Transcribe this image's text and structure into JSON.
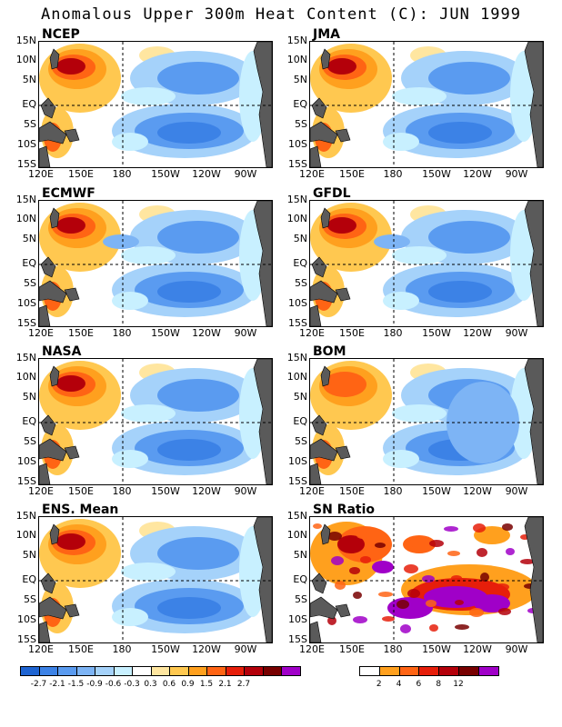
{
  "title": "Anomalous Upper 300m Heat Content (C): JUN 1999",
  "lat_labels": [
    "15N",
    "10N",
    "5N",
    "EQ",
    "5S",
    "10S",
    "15S"
  ],
  "lon_labels": [
    "120E",
    "150E",
    "180",
    "150W",
    "120W",
    "90W"
  ],
  "panels": [
    {
      "id": "ncep",
      "label": "NCEP"
    },
    {
      "id": "jma",
      "label": "JMA"
    },
    {
      "id": "ecmwf",
      "label": "ECMWF"
    },
    {
      "id": "gfdl",
      "label": "GFDL"
    },
    {
      "id": "nasa",
      "label": "NASA"
    },
    {
      "id": "bom",
      "label": "BOM"
    },
    {
      "id": "ens",
      "label": "ENS. Mean"
    },
    {
      "id": "sn",
      "label": "SN Ratio"
    }
  ],
  "colorbar_anomaly": {
    "colors": [
      "#1e64d2",
      "#3c82e6",
      "#5a9bf0",
      "#7db4f5",
      "#a5d2fa",
      "#c8f0ff",
      "#ffffff",
      "#ffe6a0",
      "#ffc850",
      "#ffa01e",
      "#ff6414",
      "#e61e0a",
      "#b4000a",
      "#780000",
      "#a000c8"
    ],
    "labels": [
      "-2.7",
      "-2.1",
      "-1.5",
      "-0.9",
      "-0.6",
      "-0.3",
      "0.3",
      "0.6",
      "0.9",
      "1.5",
      "2.1",
      "2.7"
    ]
  },
  "colorbar_sn": {
    "colors": [
      "#ffffff",
      "#ffa01e",
      "#ff6414",
      "#e61e0a",
      "#b4000a",
      "#780000",
      "#a000c8"
    ],
    "labels": [
      "2",
      "4",
      "6",
      "8",
      "12"
    ]
  }
}
